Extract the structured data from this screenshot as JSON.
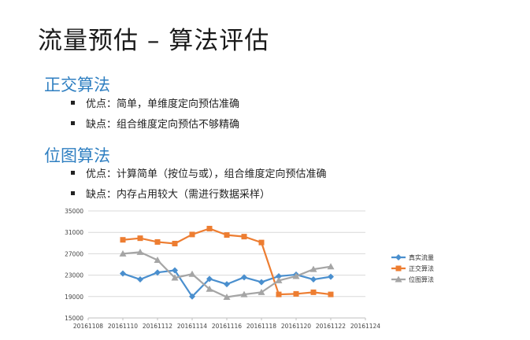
{
  "slide": {
    "title": "流量预估 – 算法评估",
    "sections": [
      {
        "heading": "正交算法",
        "bullets": [
          "优点：简单，单维度定向预估准确",
          "缺点：组合维度定向预估不够精确"
        ]
      },
      {
        "heading": "位图算法",
        "bullets": [
          "优点：计算简单（按位与或），组合维度定向预估准确",
          "缺点：内存占用较大（需进行数据采样）"
        ]
      }
    ]
  },
  "chart_data": {
    "type": "line",
    "x": [
      20161110,
      20161111,
      20161112,
      20161113,
      20161114,
      20161115,
      20161116,
      20161117,
      20161118,
      20161119,
      20161120,
      20161121,
      20161122
    ],
    "x_ticks": [
      "20161108",
      "20161110",
      "20161112",
      "20161114",
      "20161116",
      "20161118",
      "20161120",
      "20161122",
      "20161124"
    ],
    "y_ticks": [
      "35000",
      "31000",
      "27000",
      "23000",
      "19000",
      "15000"
    ],
    "xlim": [
      20161108,
      20161124
    ],
    "ylim": [
      15000,
      35000
    ],
    "grid": "horizontal",
    "legend_position": "right",
    "series": [
      {
        "name": "真实流量",
        "color": "#4a8fce",
        "marker": "diamond",
        "x": [
          20161110,
          20161111,
          20161112,
          20161113,
          20161114,
          20161115,
          20161116,
          20161117,
          20161118,
          20161119,
          20161120,
          20161121,
          20161122
        ],
        "values": [
          23300,
          22200,
          23500,
          23900,
          19000,
          22300,
          21300,
          22600,
          21700,
          22800,
          23100,
          22200,
          22700
        ]
      },
      {
        "name": "正交算法",
        "color": "#ed7d31",
        "marker": "square",
        "x": [
          20161110,
          20161111,
          20161112,
          20161113,
          20161114,
          20161115,
          20161116,
          20161117,
          20161118,
          20161119,
          20161120,
          20161121,
          20161122
        ],
        "values": [
          29600,
          29900,
          29200,
          28900,
          30600,
          31700,
          30500,
          30200,
          29100,
          19400,
          19500,
          19800,
          19400
        ]
      },
      {
        "name": "位图算法",
        "color": "#a5a5a5",
        "marker": "triangle",
        "x": [
          20161110,
          20161111,
          20161112,
          20161113,
          20161114,
          20161115,
          20161116,
          20161117,
          20161118,
          20161119,
          20161120,
          20161121,
          20161122
        ],
        "values": [
          27000,
          27300,
          25800,
          22500,
          23200,
          20400,
          18900,
          19400,
          19800,
          22000,
          22800,
          24100,
          24600
        ]
      }
    ]
  }
}
